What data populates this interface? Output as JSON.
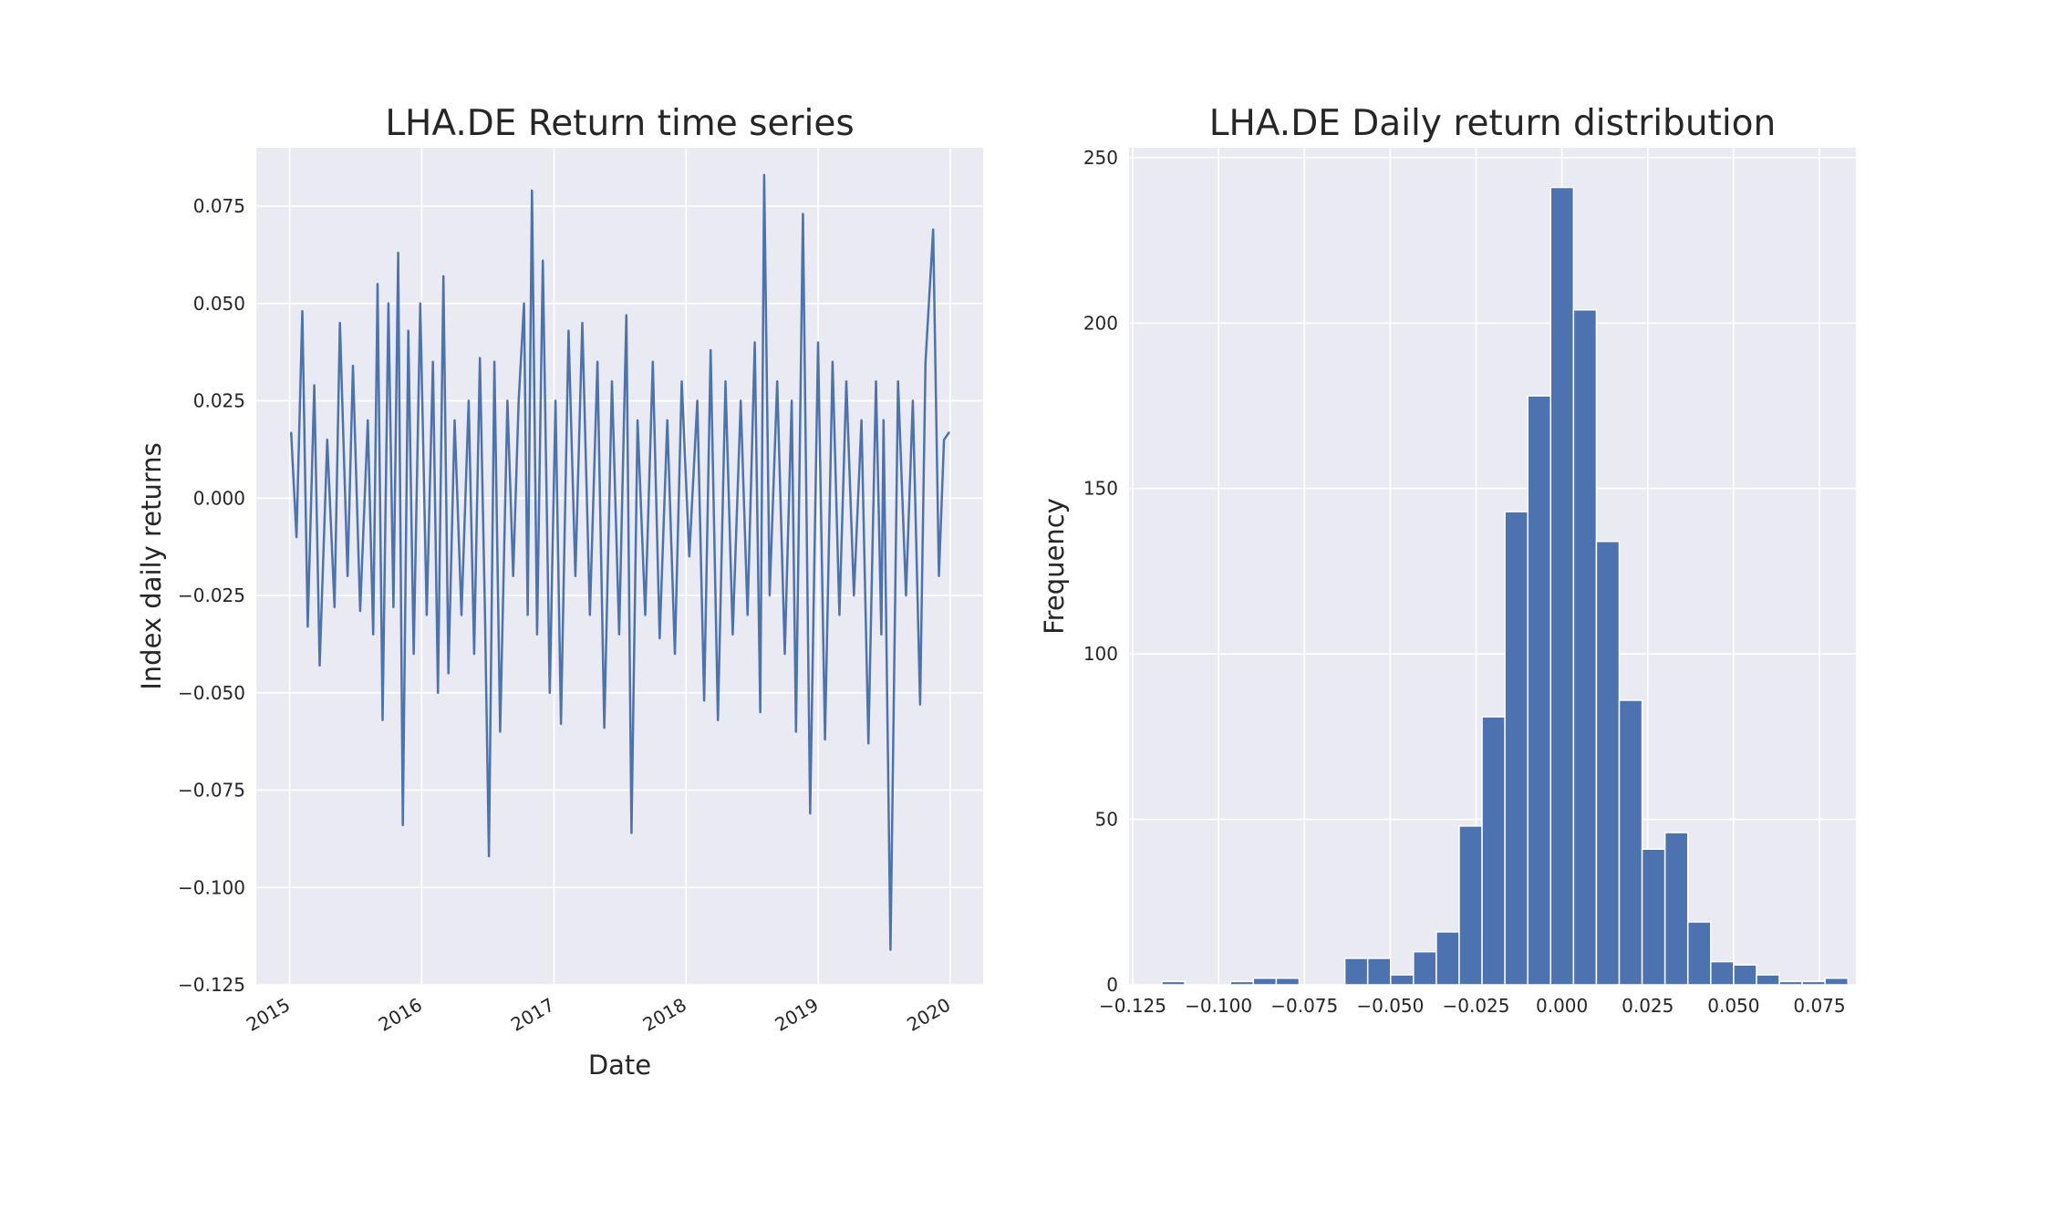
{
  "chart_data": [
    {
      "type": "line",
      "title": "LHA.DE Return time series",
      "xlabel": "Date",
      "ylabel": "Index daily returns",
      "x_range": [
        "2015-01-02",
        "2019-12-30"
      ],
      "ylim": [
        -0.125,
        0.09
      ],
      "x_tick_labels": [
        "2015",
        "2016",
        "2017",
        "2018",
        "2019",
        "2020"
      ],
      "y_tick_labels": [
        "0.075",
        "0.050",
        "0.025",
        "0.000",
        "−0.025",
        "−0.050",
        "−0.075",
        "−0.100",
        "−0.125"
      ],
      "grid": true,
      "color": "#4c72b0",
      "series": [
        {
          "sampled": true,
          "x": [
            "2015-01-05",
            "2015-01-20",
            "2015-02-05",
            "2015-02-20",
            "2015-03-10",
            "2015-03-25",
            "2015-04-15",
            "2015-05-05",
            "2015-05-20",
            "2015-06-10",
            "2015-06-25",
            "2015-07-15",
            "2015-08-05",
            "2015-08-20",
            "2015-09-01",
            "2015-09-15",
            "2015-10-01",
            "2015-10-15",
            "2015-10-28",
            "2015-11-10",
            "2015-11-25",
            "2015-12-10",
            "2015-12-28",
            "2016-01-15",
            "2016-02-01",
            "2016-02-15",
            "2016-03-01",
            "2016-03-15",
            "2016-04-01",
            "2016-04-20",
            "2016-05-10",
            "2016-05-25",
            "2016-06-10",
            "2016-06-24",
            "2016-07-05",
            "2016-07-20",
            "2016-08-05",
            "2016-08-25",
            "2016-09-10",
            "2016-09-25",
            "2016-10-10",
            "2016-10-20",
            "2016-11-01",
            "2016-11-15",
            "2016-12-01",
            "2016-12-20",
            "2017-01-05",
            "2017-01-20",
            "2017-02-10",
            "2017-03-01",
            "2017-03-20",
            "2017-04-10",
            "2017-05-01",
            "2017-05-20",
            "2017-06-10",
            "2017-06-30",
            "2017-07-20",
            "2017-08-03",
            "2017-08-20",
            "2017-09-10",
            "2017-10-01",
            "2017-10-20",
            "2017-11-10",
            "2017-12-01",
            "2017-12-20",
            "2018-01-10",
            "2018-02-01",
            "2018-02-20",
            "2018-03-10",
            "2018-03-30",
            "2018-04-20",
            "2018-05-10",
            "2018-06-01",
            "2018-06-20",
            "2018-07-10",
            "2018-07-25",
            "2018-08-05",
            "2018-08-20",
            "2018-09-10",
            "2018-10-01",
            "2018-10-20",
            "2018-11-01",
            "2018-11-20",
            "2018-12-10",
            "2019-01-01",
            "2019-01-20",
            "2019-02-10",
            "2019-03-01",
            "2019-03-20",
            "2019-04-10",
            "2019-05-01",
            "2019-05-20",
            "2019-06-10",
            "2019-06-25",
            "2019-07-01",
            "2019-07-20",
            "2019-08-10",
            "2019-09-01",
            "2019-09-20",
            "2019-10-10",
            "2019-10-25",
            "2019-11-15",
            "2019-12-01",
            "2019-12-15",
            "2019-12-30"
          ],
          "y": [
            0.017,
            -0.01,
            0.048,
            -0.033,
            0.029,
            -0.043,
            0.015,
            -0.028,
            0.045,
            -0.02,
            0.034,
            -0.029,
            0.02,
            -0.035,
            0.055,
            -0.057,
            0.05,
            -0.028,
            0.063,
            -0.084,
            0.043,
            -0.04,
            0.05,
            -0.03,
            0.035,
            -0.05,
            0.057,
            -0.045,
            0.02,
            -0.03,
            0.025,
            -0.04,
            0.036,
            -0.03,
            -0.092,
            0.035,
            -0.06,
            0.025,
            -0.02,
            0.025,
            0.05,
            -0.03,
            0.079,
            -0.035,
            0.061,
            -0.05,
            0.025,
            -0.058,
            0.043,
            -0.02,
            0.045,
            -0.03,
            0.035,
            -0.059,
            0.03,
            -0.035,
            0.047,
            -0.086,
            0.02,
            -0.03,
            0.035,
            -0.036,
            0.02,
            -0.04,
            0.03,
            -0.015,
            0.025,
            -0.052,
            0.038,
            -0.057,
            0.03,
            -0.035,
            0.025,
            -0.03,
            0.04,
            -0.055,
            0.083,
            -0.025,
            0.03,
            -0.04,
            0.025,
            -0.06,
            0.073,
            -0.081,
            0.04,
            -0.062,
            0.035,
            -0.03,
            0.03,
            -0.025,
            0.02,
            -0.063,
            0.03,
            -0.035,
            0.02,
            -0.116,
            0.03,
            -0.025,
            0.025,
            -0.053,
            0.035,
            0.069,
            -0.02,
            0.015,
            0.017
          ]
        }
      ]
    },
    {
      "type": "bar",
      "title": "LHA.DE Daily return distribution",
      "xlabel": "",
      "ylabel": "Frequency",
      "xlim": [
        -0.125,
        0.092
      ],
      "ylim": [
        0,
        253
      ],
      "x_tick_labels": [
        "−0.125",
        "−0.100",
        "−0.075",
        "−0.050",
        "−0.025",
        "0.000",
        "0.025",
        "0.050",
        "0.075"
      ],
      "y_tick_labels": [
        "0",
        "50",
        "100",
        "150",
        "200",
        "250"
      ],
      "grid": true,
      "color": "#4c72b0",
      "bin_start": -0.1165,
      "bin_width": 0.00666,
      "counts": [
        1,
        0,
        0,
        1,
        2,
        2,
        0,
        0,
        8,
        8,
        3,
        10,
        16,
        48,
        81,
        143,
        178,
        241,
        204,
        134,
        86,
        41,
        46,
        19,
        7,
        6,
        3,
        1,
        1,
        2
      ]
    }
  ]
}
